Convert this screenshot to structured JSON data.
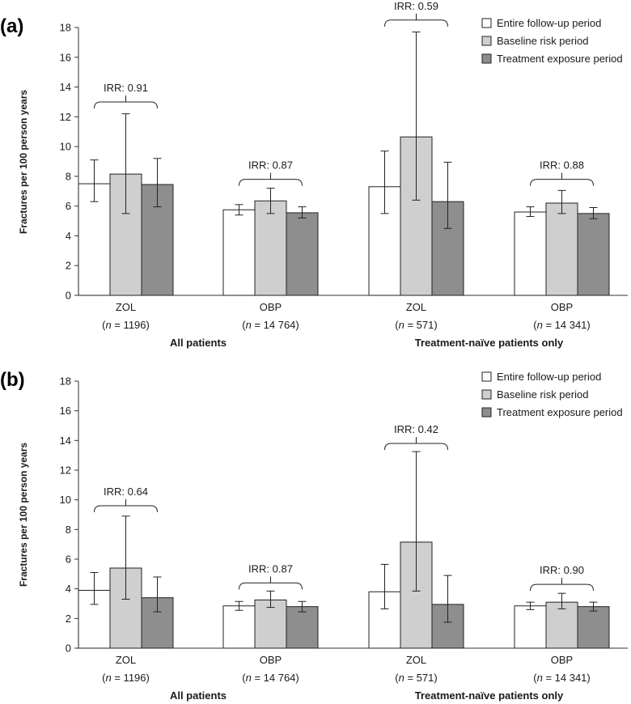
{
  "chart_data": [
    {
      "panel_label": "(a)",
      "type": "bar",
      "ylabel": "Fractures per 100 person years",
      "ylim": [
        0,
        18
      ],
      "yticks": [
        "0",
        "2",
        "4",
        "6",
        "8",
        "10",
        "12",
        "14",
        "16",
        "18"
      ],
      "ytick_values": [
        0,
        2,
        4,
        6,
        8,
        10,
        12,
        14,
        16,
        18
      ],
      "categories": [
        "ZOL",
        "OBP",
        "ZOL",
        "OBP"
      ],
      "sample_sizes": [
        "1196)",
        "14 764)",
        "571)",
        "14 341)"
      ],
      "n_prefix": "(n = ",
      "groups": [
        "All patients",
        "Treatment-naïve patients only"
      ],
      "series": [
        {
          "name": "Entire follow-up period",
          "color": "#ffffff",
          "values": [
            7.5,
            5.75,
            7.3,
            5.6
          ],
          "err_low": [
            6.3,
            5.4,
            5.5,
            5.3
          ],
          "err_high": [
            9.1,
            6.1,
            9.7,
            5.95
          ]
        },
        {
          "name": "Baseline risk period",
          "color": "#cfcfcf",
          "values": [
            8.15,
            6.35,
            10.65,
            6.2
          ],
          "err_low": [
            5.5,
            5.5,
            6.4,
            5.5
          ],
          "err_high": [
            12.2,
            7.2,
            17.7,
            7.05
          ]
        },
        {
          "name": "Treatment exposure period",
          "color": "#8e8e8e",
          "values": [
            7.45,
            5.55,
            6.3,
            5.5
          ],
          "err_low": [
            5.95,
            5.2,
            4.5,
            5.15
          ],
          "err_high": [
            9.2,
            5.95,
            8.95,
            5.9
          ]
        }
      ],
      "irr": [
        "IRR: 0.91",
        "IRR: 0.87",
        "IRR: 0.59",
        "IRR: 0.88"
      ],
      "irr_level": [
        13,
        7.8,
        18.5,
        7.8
      ]
    },
    {
      "panel_label": "(b)",
      "type": "bar",
      "ylabel": "Fractures per 100 person years",
      "ylim": [
        0,
        18
      ],
      "yticks": [
        "0",
        "2",
        "4",
        "6",
        "8",
        "10",
        "12",
        "14",
        "16",
        "18"
      ],
      "ytick_values": [
        0,
        2,
        4,
        6,
        8,
        10,
        12,
        14,
        16,
        18
      ],
      "categories": [
        "ZOL",
        "OBP",
        "ZOL",
        "OBP"
      ],
      "sample_sizes": [
        "1196)",
        "14 764)",
        "571)",
        "14 341)"
      ],
      "n_prefix": "(n = ",
      "groups": [
        "All patients",
        "Treatment-naïve patients only"
      ],
      "series": [
        {
          "name": "Entire follow-up period",
          "color": "#ffffff",
          "values": [
            3.9,
            2.85,
            3.8,
            2.85
          ],
          "err_low": [
            2.95,
            2.55,
            2.65,
            2.6
          ],
          "err_high": [
            5.1,
            3.15,
            5.65,
            3.1
          ]
        },
        {
          "name": "Baseline risk period",
          "color": "#cfcfcf",
          "values": [
            5.4,
            3.25,
            7.15,
            3.1
          ],
          "err_low": [
            3.3,
            2.75,
            3.85,
            2.65
          ],
          "err_high": [
            8.9,
            3.85,
            13.25,
            3.7
          ]
        },
        {
          "name": "Treatment exposure period",
          "color": "#8e8e8e",
          "values": [
            3.4,
            2.8,
            2.95,
            2.8
          ],
          "err_low": [
            2.45,
            2.45,
            1.75,
            2.5
          ],
          "err_high": [
            4.8,
            3.15,
            4.9,
            3.1
          ]
        }
      ],
      "irr": [
        "IRR: 0.64",
        "IRR: 0.87",
        "IRR: 0.42",
        "IRR: 0.90"
      ],
      "irr_level": [
        9.6,
        4.4,
        13.8,
        4.3
      ]
    }
  ]
}
